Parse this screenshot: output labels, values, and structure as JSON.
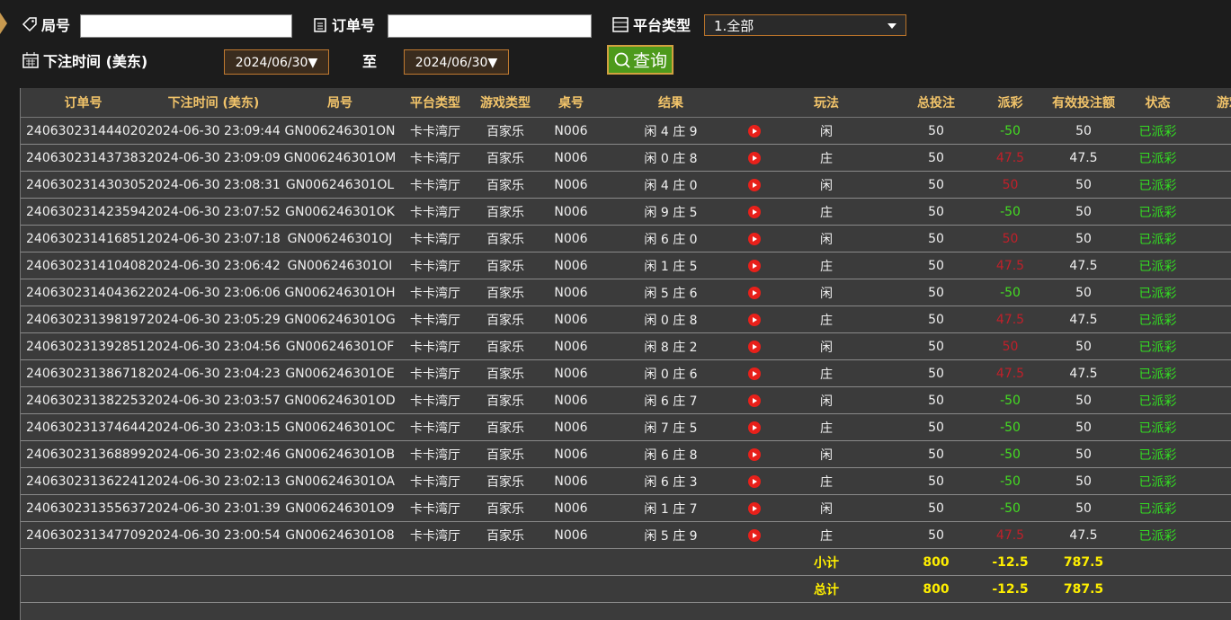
{
  "filters": {
    "round_label": "局号",
    "order_label": "订单号",
    "platform_label": "平台类型",
    "platform_value": "1.全部",
    "time_label": "下注时间 (美东)",
    "date_from": "2024/06/30",
    "to_label": "至",
    "date_to": "2024/06/30",
    "query_button": "查询"
  },
  "table": {
    "headers": [
      "订单号",
      "下注时间 (美东)",
      "局号",
      "平台类型",
      "游戏类型",
      "桌号",
      "结果",
      null,
      "玩法",
      "总投注",
      "派彩",
      "有效投注额",
      "状态",
      "游戏"
    ],
    "rows": [
      [
        "240630231444020",
        "2024-06-30 23:09:44",
        "GN006246301ON",
        "卡卡湾厅",
        "百家乐",
        "N006",
        "闲 4 庄 9",
        "闲",
        50,
        -50,
        50,
        "已派彩"
      ],
      [
        "240630231437383",
        "2024-06-30 23:09:09",
        "GN006246301OM",
        "卡卡湾厅",
        "百家乐",
        "N006",
        "闲 0 庄 8",
        "庄",
        50,
        47.5,
        47.5,
        "已派彩"
      ],
      [
        "240630231430305",
        "2024-06-30 23:08:31",
        "GN006246301OL",
        "卡卡湾厅",
        "百家乐",
        "N006",
        "闲 4 庄 0",
        "闲",
        50,
        50,
        50,
        "已派彩"
      ],
      [
        "240630231423594",
        "2024-06-30 23:07:52",
        "GN006246301OK",
        "卡卡湾厅",
        "百家乐",
        "N006",
        "闲 9 庄 5",
        "庄",
        50,
        -50,
        50,
        "已派彩"
      ],
      [
        "240630231416851",
        "2024-06-30 23:07:18",
        "GN006246301OJ",
        "卡卡湾厅",
        "百家乐",
        "N006",
        "闲 6 庄 0",
        "闲",
        50,
        50,
        50,
        "已派彩"
      ],
      [
        "240630231410408",
        "2024-06-30 23:06:42",
        "GN006246301OI",
        "卡卡湾厅",
        "百家乐",
        "N006",
        "闲 1 庄 5",
        "庄",
        50,
        47.5,
        47.5,
        "已派彩"
      ],
      [
        "240630231404362",
        "2024-06-30 23:06:06",
        "GN006246301OH",
        "卡卡湾厅",
        "百家乐",
        "N006",
        "闲 5 庄 6",
        "闲",
        50,
        -50,
        50,
        "已派彩"
      ],
      [
        "240630231398197",
        "2024-06-30 23:05:29",
        "GN006246301OG",
        "卡卡湾厅",
        "百家乐",
        "N006",
        "闲 0 庄 8",
        "庄",
        50,
        47.5,
        47.5,
        "已派彩"
      ],
      [
        "240630231392851",
        "2024-06-30 23:04:56",
        "GN006246301OF",
        "卡卡湾厅",
        "百家乐",
        "N006",
        "闲 8 庄 2",
        "闲",
        50,
        50,
        50,
        "已派彩"
      ],
      [
        "240630231386718",
        "2024-06-30 23:04:23",
        "GN006246301OE",
        "卡卡湾厅",
        "百家乐",
        "N006",
        "闲 0 庄 6",
        "庄",
        50,
        47.5,
        47.5,
        "已派彩"
      ],
      [
        "240630231382253",
        "2024-06-30 23:03:57",
        "GN006246301OD",
        "卡卡湾厅",
        "百家乐",
        "N006",
        "闲 6 庄 7",
        "闲",
        50,
        -50,
        50,
        "已派彩"
      ],
      [
        "240630231374644",
        "2024-06-30 23:03:15",
        "GN006246301OC",
        "卡卡湾厅",
        "百家乐",
        "N006",
        "闲 7 庄 5",
        "庄",
        50,
        -50,
        50,
        "已派彩"
      ],
      [
        "240630231368899",
        "2024-06-30 23:02:46",
        "GN006246301OB",
        "卡卡湾厅",
        "百家乐",
        "N006",
        "闲 6 庄 8",
        "闲",
        50,
        -50,
        50,
        "已派彩"
      ],
      [
        "240630231362241",
        "2024-06-30 23:02:13",
        "GN006246301OA",
        "卡卡湾厅",
        "百家乐",
        "N006",
        "闲 6 庄 3",
        "庄",
        50,
        -50,
        50,
        "已派彩"
      ],
      [
        "240630231355637",
        "2024-06-30 23:01:39",
        "GN006246301O9",
        "卡卡湾厅",
        "百家乐",
        "N006",
        "闲 1 庄 7",
        "闲",
        50,
        -50,
        50,
        "已派彩"
      ],
      [
        "240630231347709",
        "2024-06-30 23:00:54",
        "GN006246301O8",
        "卡卡湾厅",
        "百家乐",
        "N006",
        "闲 5 庄 9",
        "庄",
        50,
        47.5,
        47.5,
        "已派彩"
      ]
    ],
    "summary": [
      {
        "label": "小计",
        "total": 800,
        "payout": -12.5,
        "effective": 787.5
      },
      {
        "label": "总计",
        "total": 800,
        "payout": -12.5,
        "effective": 787.5
      }
    ]
  }
}
